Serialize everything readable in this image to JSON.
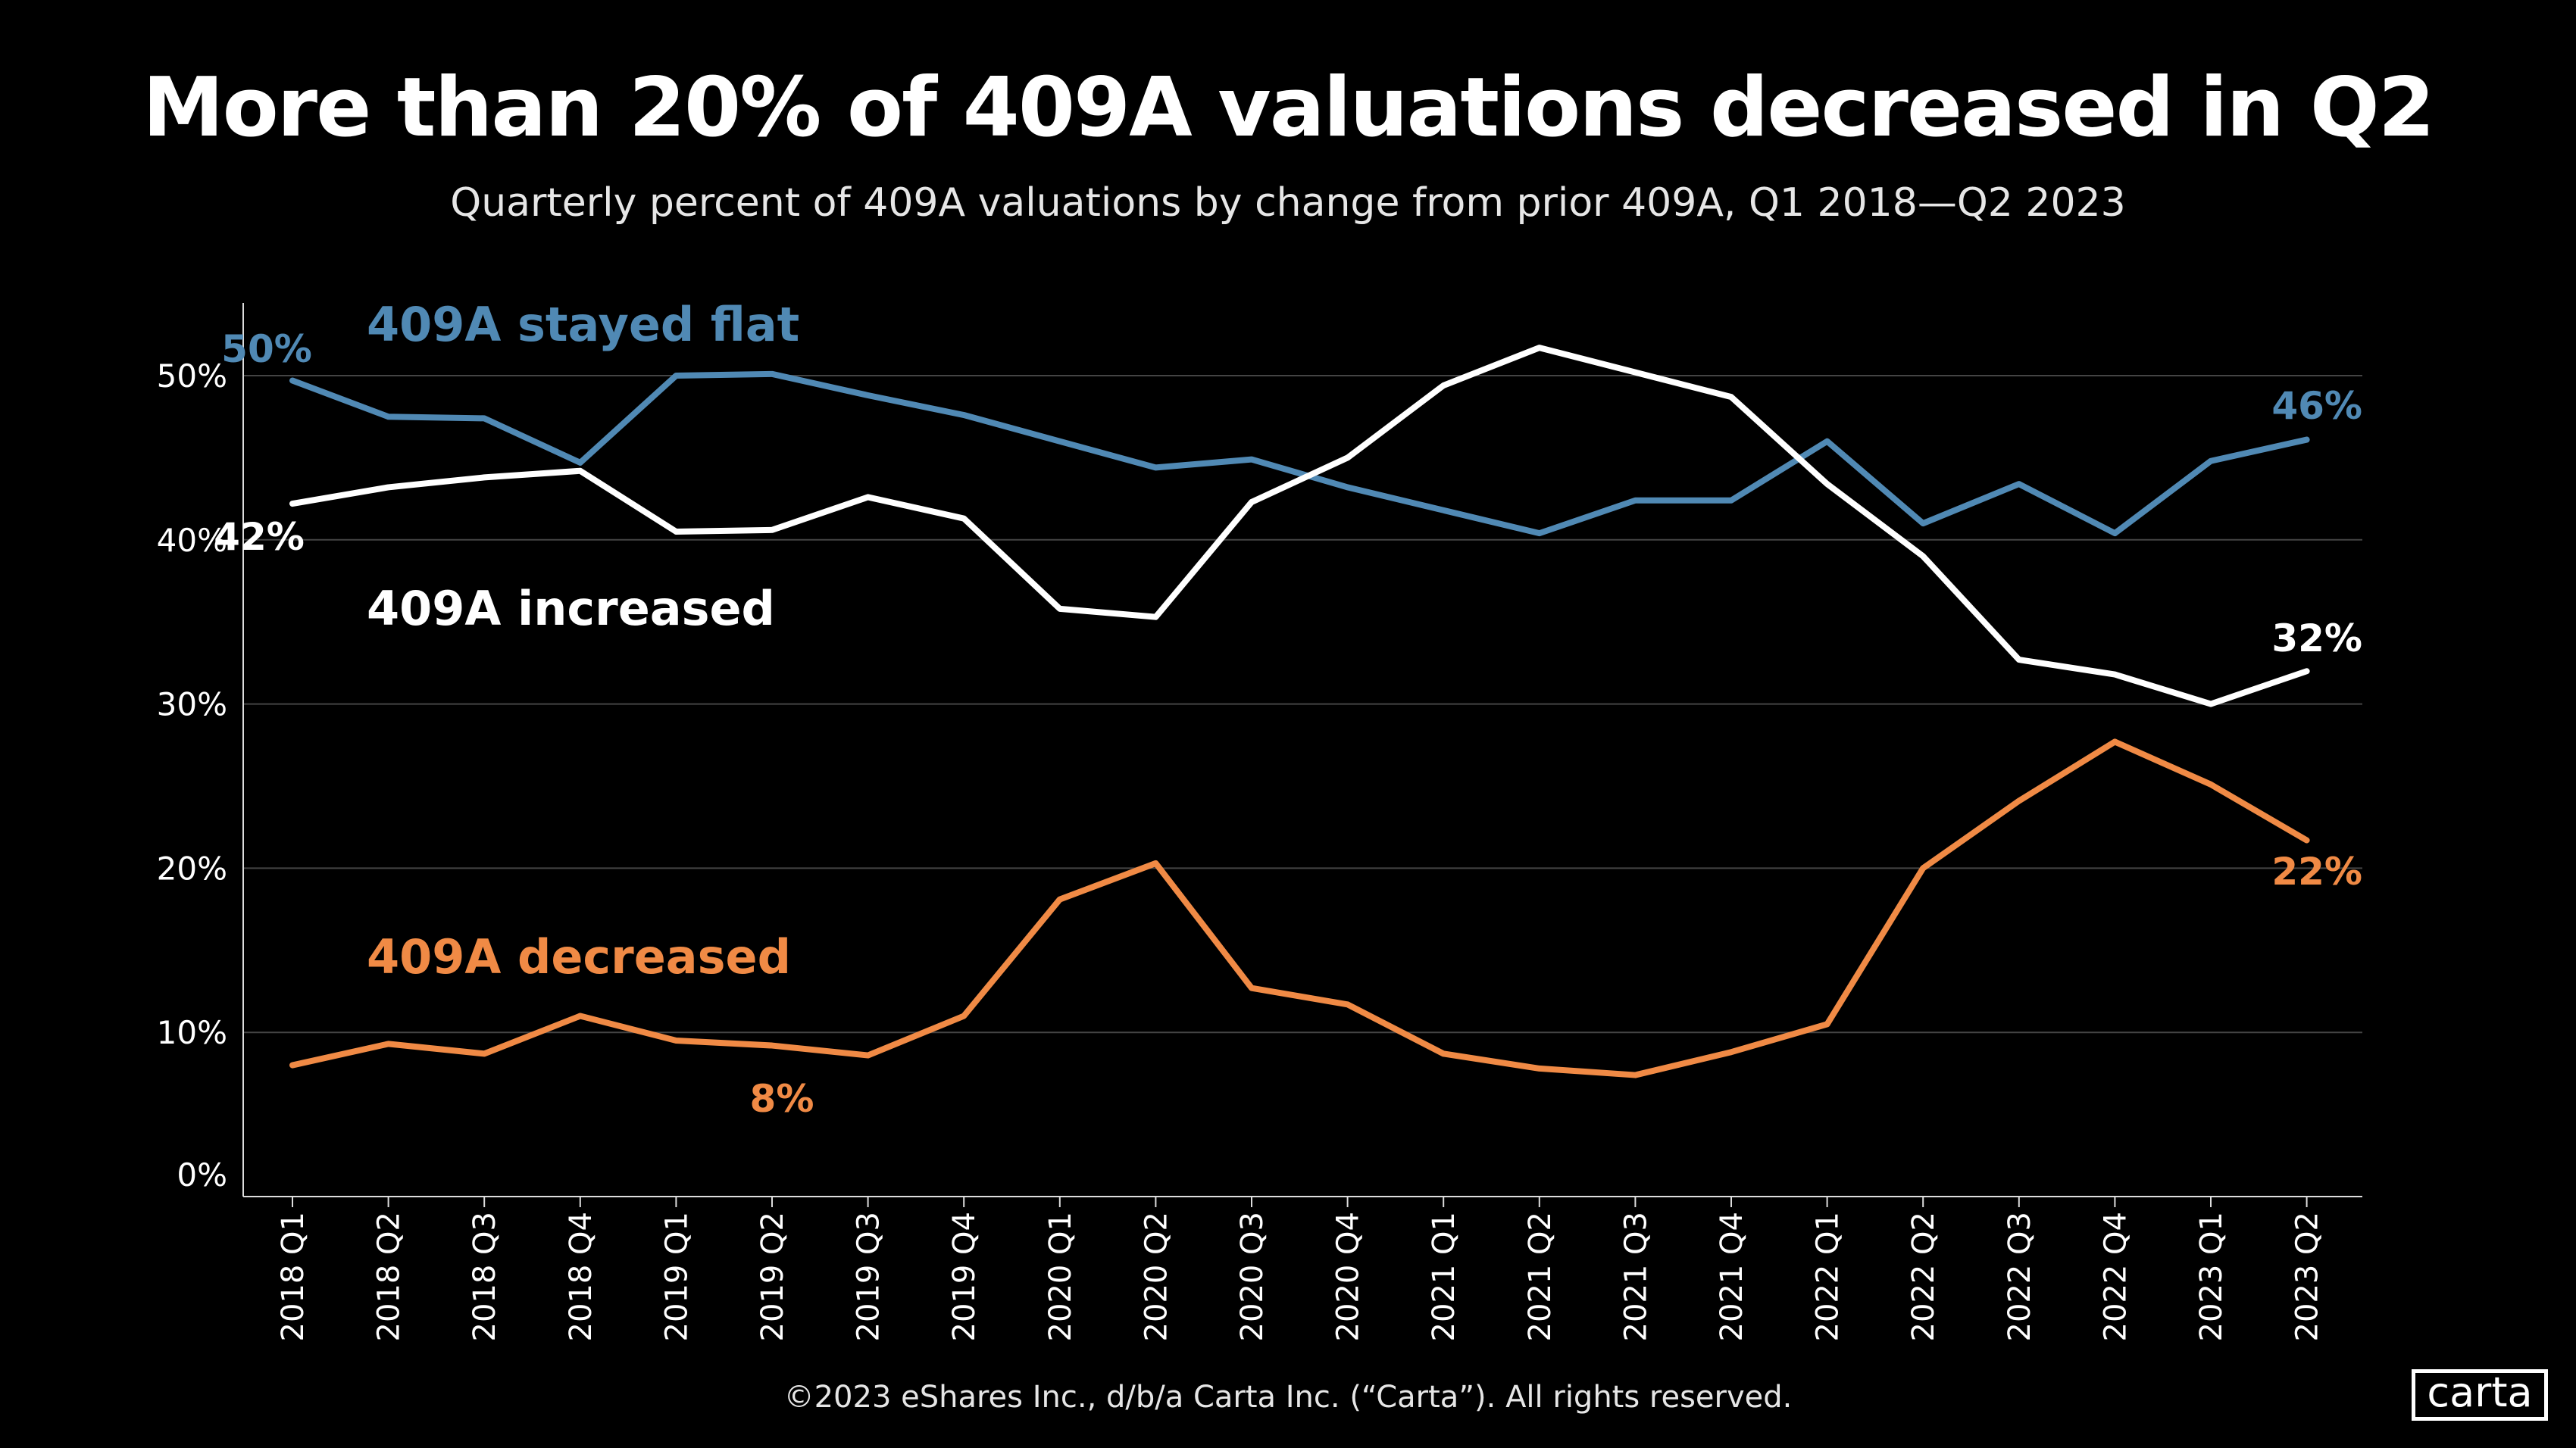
{
  "title": "More than 20% of 409A valuations decreased in Q2",
  "subtitle": "Quarterly percent of 409A valuations by change from prior 409A, Q1 2018—Q2 2023",
  "footer": "©2023 eShares Inc., d/b/a Carta Inc. (“Carta”). All rights reserved.",
  "logo": "carta",
  "chart_data": {
    "type": "line",
    "title": "More than 20% of 409A valuations decreased in Q2",
    "subtitle": "Quarterly percent of 409A valuations by change from prior 409A, Q1 2018—Q2 2023",
    "xlabel": "",
    "ylabel": "",
    "ylim": [
      0,
      55
    ],
    "yticks": [
      0,
      10,
      20,
      30,
      40,
      50
    ],
    "ytick_labels": [
      "0%",
      "10%",
      "20%",
      "30%",
      "40%",
      "50%"
    ],
    "grid": "horizontal",
    "categories": [
      "2018 Q1",
      "2018 Q2",
      "2018 Q3",
      "2018 Q4",
      "2019 Q1",
      "2019 Q2",
      "2019 Q3",
      "2019 Q4",
      "2020 Q1",
      "2020 Q2",
      "2020 Q3",
      "2020 Q4",
      "2021 Q1",
      "2021 Q2",
      "2021 Q3",
      "2021 Q4",
      "2022 Q1",
      "2022 Q2",
      "2022 Q3",
      "2022 Q4",
      "2023 Q1",
      "2023 Q2"
    ],
    "series": [
      {
        "name": "409A stayed flat",
        "color": "#5089B4",
        "start_label": "50%",
        "end_label": "46%",
        "values": [
          49.7,
          47.5,
          47.4,
          44.7,
          50.0,
          50.1,
          48.8,
          47.6,
          46.0,
          44.4,
          44.9,
          43.2,
          41.8,
          40.4,
          42.4,
          42.4,
          46.0,
          41.0,
          43.4,
          40.4,
          44.8,
          46.1
        ]
      },
      {
        "name": "409A increased",
        "color": "#FFFFFF",
        "start_label": "42%",
        "end_label": "32%",
        "values": [
          42.2,
          43.2,
          43.8,
          44.2,
          40.5,
          40.6,
          42.6,
          41.3,
          35.8,
          35.3,
          42.3,
          45.0,
          49.4,
          51.7,
          50.2,
          48.7,
          43.4,
          39.0,
          32.7,
          31.8,
          30.0,
          32.0
        ]
      },
      {
        "name": "409A decreased",
        "color": "#F08A45",
        "start_label": "8%",
        "end_label": "22%",
        "values": [
          8.0,
          9.3,
          8.7,
          11.0,
          9.5,
          9.2,
          8.6,
          11.0,
          18.1,
          20.3,
          12.7,
          11.7,
          8.7,
          7.8,
          7.4,
          8.8,
          10.5,
          20.0,
          24.1,
          27.7,
          25.1,
          21.7
        ]
      }
    ]
  }
}
